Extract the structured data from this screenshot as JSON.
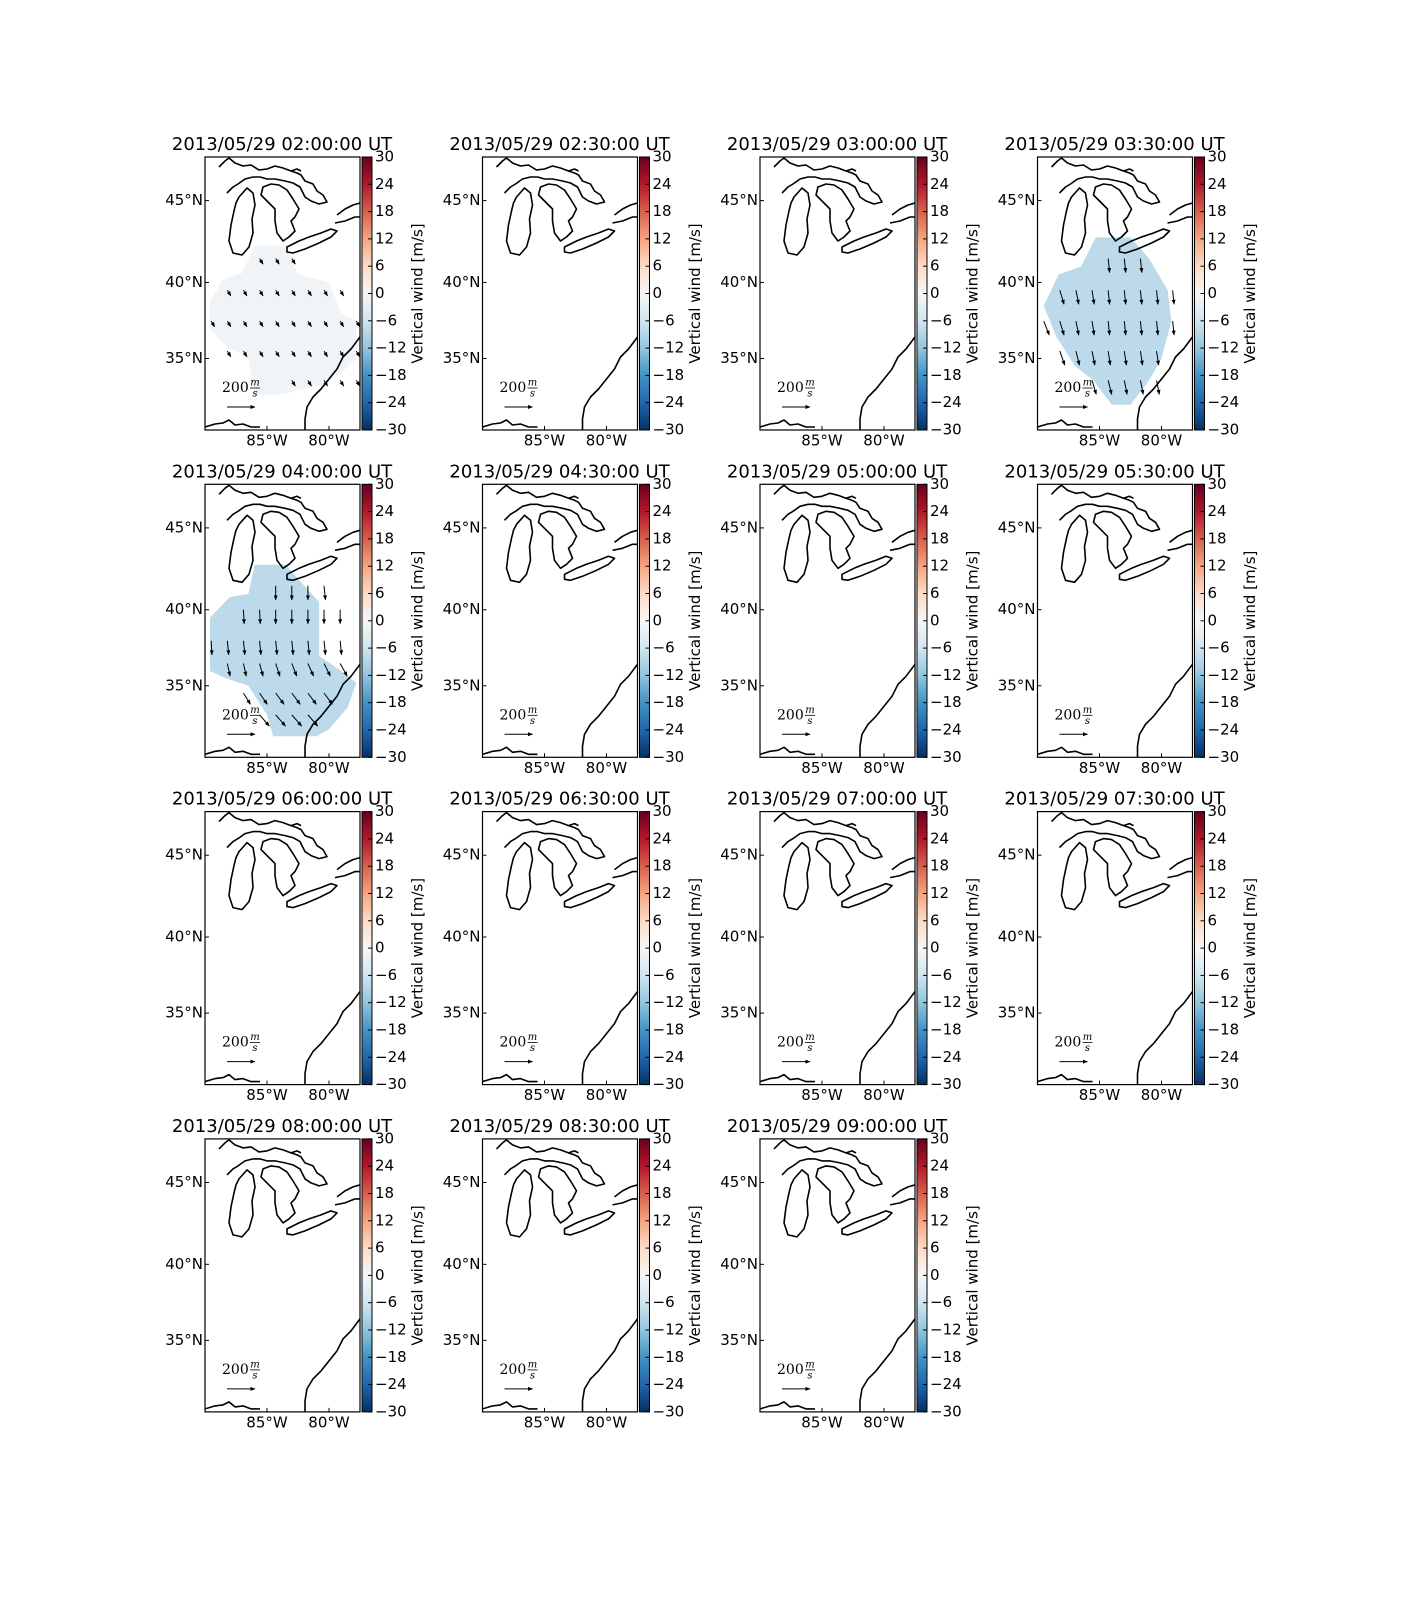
{
  "map": {
    "xlim": [
      -90,
      -77.5
    ],
    "ylim": [
      30,
      47.5
    ],
    "xticks": [
      {
        "value": -85,
        "label": "85°W"
      },
      {
        "value": -80,
        "label": "80°W"
      }
    ],
    "yticks": [
      {
        "value": 35,
        "label": "35°N"
      },
      {
        "value": 40,
        "label": "40°N"
      },
      {
        "value": 45,
        "label": "45°N"
      }
    ]
  },
  "colorbar": {
    "label": "Vertical wind [m/s]",
    "lim": [
      -30,
      30
    ],
    "colormap": [
      "#053061",
      "#2166ac",
      "#4393c3",
      "#92c5de",
      "#d1e5f0",
      "#f7f7f7",
      "#fddbc7",
      "#f4a582",
      "#d6604d",
      "#b2182b",
      "#67001f"
    ],
    "ticks": [
      30,
      24,
      18,
      12,
      6,
      0,
      {
        "value": -6,
        "label": "−6"
      },
      {
        "value": -12,
        "label": "−12"
      },
      {
        "value": -18,
        "label": "−18"
      },
      {
        "value": -24,
        "label": "−24"
      },
      {
        "value": -30,
        "label": "−30"
      }
    ]
  },
  "reference_arrow": {
    "value": 200,
    "numerator": "m",
    "denominator": "s"
  },
  "panels": [
    {
      "title": "2013/05/29 02:00:00 UT",
      "field": {
        "value": -1,
        "region": [
          [
            -89.6,
            38.8
          ],
          [
            -88.5,
            40.2
          ],
          [
            -87,
            40.6
          ],
          [
            -86,
            42.3
          ],
          [
            -83.5,
            42.3
          ],
          [
            -82.5,
            40.5
          ],
          [
            -80,
            40
          ],
          [
            -79,
            38
          ],
          [
            -77.8,
            37.5
          ],
          [
            -77.8,
            35
          ],
          [
            -79,
            34
          ],
          [
            -80.5,
            33.2
          ],
          [
            -84,
            32.5
          ],
          [
            -86,
            32.5
          ],
          [
            -86.5,
            35
          ],
          [
            -88.5,
            36
          ],
          [
            -89.6,
            37
          ]
        ],
        "lons": [
          -89.5,
          -88.2,
          -86.9,
          -85.6,
          -84.3,
          -83,
          -81.7,
          -80.4,
          -79.1,
          -77.8
        ],
        "lats": [
          41.5,
          39.5,
          37.5,
          35.5,
          33.5
        ],
        "u": [
          [
            null,
            null,
            null,
            25,
            25,
            25,
            null,
            null,
            null,
            null
          ],
          [
            null,
            25,
            25,
            25,
            25,
            25,
            25,
            25,
            25,
            null
          ],
          [
            25,
            25,
            25,
            25,
            25,
            25,
            25,
            25,
            25,
            25
          ],
          [
            null,
            25,
            25,
            25,
            25,
            25,
            25,
            25,
            25,
            25
          ],
          [
            null,
            null,
            null,
            null,
            null,
            25,
            25,
            25,
            25,
            25
          ]
        ],
        "v": [
          [
            null,
            null,
            null,
            -40,
            -40,
            -40,
            null,
            null,
            null,
            null
          ],
          [
            null,
            -40,
            -40,
            -40,
            -40,
            -40,
            -40,
            -40,
            -40,
            null
          ],
          [
            -40,
            -40,
            -40,
            -40,
            -40,
            -40,
            -40,
            -40,
            -40,
            -40
          ],
          [
            null,
            -40,
            -40,
            -40,
            -40,
            -40,
            -40,
            -40,
            -40,
            -40
          ],
          [
            null,
            null,
            null,
            null,
            null,
            -40,
            -40,
            -40,
            -40,
            -40
          ]
        ]
      }
    },
    {
      "title": "2013/05/29 02:30:00 UT"
    },
    {
      "title": "2013/05/29 03:00:00 UT"
    },
    {
      "title": "2013/05/29 03:30:00 UT",
      "field": {
        "value": -8,
        "region": [
          [
            -89.5,
            38.5
          ],
          [
            -88.3,
            40.5
          ],
          [
            -86.5,
            41
          ],
          [
            -85.3,
            42.8
          ],
          [
            -82.5,
            42.8
          ],
          [
            -81,
            41.5
          ],
          [
            -79.5,
            39.5
          ],
          [
            -79.2,
            37.5
          ],
          [
            -80,
            35
          ],
          [
            -81,
            33.5
          ],
          [
            -82.5,
            31.8
          ],
          [
            -84,
            31.8
          ],
          [
            -85.5,
            33.5
          ],
          [
            -87,
            34.5
          ],
          [
            -88.5,
            36.5
          ]
        ],
        "lons": [
          -89.5,
          -88.2,
          -86.9,
          -85.6,
          -84.3,
          -83,
          -81.7,
          -80.4,
          -79.1,
          -77.8
        ],
        "lats": [
          41.5,
          39.5,
          37.5,
          35.5,
          33.5
        ],
        "u": [
          [
            null,
            null,
            null,
            null,
            10,
            10,
            10,
            null,
            null,
            null
          ],
          [
            null,
            30,
            20,
            15,
            10,
            10,
            10,
            10,
            10,
            null
          ],
          [
            40,
            30,
            20,
            15,
            10,
            10,
            10,
            10,
            10,
            null
          ],
          [
            null,
            35,
            25,
            20,
            15,
            15,
            15,
            15,
            null,
            null
          ],
          [
            null,
            null,
            null,
            30,
            25,
            20,
            20,
            20,
            null,
            null
          ]
        ],
        "v": [
          [
            null,
            null,
            null,
            null,
            -100,
            -100,
            -100,
            null,
            null,
            null
          ],
          [
            null,
            -100,
            -100,
            -100,
            -100,
            -100,
            -100,
            -100,
            -100,
            null
          ],
          [
            -100,
            -100,
            -100,
            -100,
            -100,
            -100,
            -100,
            -100,
            -100,
            null
          ],
          [
            null,
            -100,
            -100,
            -100,
            -100,
            -100,
            -100,
            -100,
            null,
            null
          ],
          [
            null,
            null,
            null,
            -100,
            -100,
            -100,
            -100,
            -100,
            null,
            null
          ]
        ]
      }
    },
    {
      "title": "2013/05/29 04:00:00 UT",
      "field": {
        "value": -8,
        "region": [
          [
            -89.6,
            37
          ],
          [
            -89.6,
            39.5
          ],
          [
            -88,
            40.8
          ],
          [
            -86.5,
            41
          ],
          [
            -86,
            42.8
          ],
          [
            -83.5,
            42.8
          ],
          [
            -82,
            41.5
          ],
          [
            -80.8,
            40.5
          ],
          [
            -80.8,
            37
          ],
          [
            -79,
            36
          ],
          [
            -77.8,
            35.2
          ],
          [
            -78.5,
            33.5
          ],
          [
            -80,
            32
          ],
          [
            -81,
            31.5
          ],
          [
            -84.5,
            31.5
          ],
          [
            -85,
            33
          ],
          [
            -86.5,
            35
          ],
          [
            -88.3,
            35.5
          ],
          [
            -89.6,
            36
          ]
        ],
        "lons": [
          -89.5,
          -88.2,
          -86.9,
          -85.6,
          -84.3,
          -83,
          -81.7,
          -80.4,
          -79.1,
          -77.8
        ],
        "lats": [
          41.5,
          40,
          38,
          36.5,
          34.5,
          33
        ],
        "u": [
          [
            null,
            null,
            null,
            null,
            0,
            0,
            0,
            10,
            null,
            null
          ],
          [
            null,
            null,
            5,
            5,
            0,
            0,
            0,
            0,
            0,
            null
          ],
          [
            5,
            10,
            10,
            10,
            10,
            10,
            10,
            10,
            10,
            null
          ],
          [
            null,
            20,
            20,
            25,
            30,
            35,
            40,
            45,
            50,
            null
          ],
          [
            null,
            null,
            50,
            55,
            60,
            60,
            60,
            60,
            null,
            null
          ],
          [
            null,
            null,
            null,
            70,
            70,
            70,
            70,
            null,
            null,
            null
          ]
        ],
        "v": [
          [
            null,
            null,
            null,
            null,
            -100,
            -100,
            -100,
            -100,
            null,
            null
          ],
          [
            null,
            null,
            -100,
            -100,
            -100,
            -100,
            -100,
            -100,
            -100,
            null
          ],
          [
            -100,
            -100,
            -100,
            -100,
            -100,
            -100,
            -100,
            -100,
            -100,
            null
          ],
          [
            null,
            -90,
            -90,
            -90,
            -90,
            -90,
            -90,
            -90,
            -90,
            null
          ],
          [
            null,
            null,
            -80,
            -80,
            -80,
            -80,
            -80,
            -80,
            null,
            null
          ],
          [
            null,
            null,
            null,
            -80,
            -80,
            -80,
            -80,
            null,
            null,
            null
          ]
        ]
      }
    },
    {
      "title": "2013/05/29 04:30:00 UT"
    },
    {
      "title": "2013/05/29 05:00:00 UT"
    },
    {
      "title": "2013/05/29 05:30:00 UT"
    },
    {
      "title": "2013/05/29 06:00:00 UT"
    },
    {
      "title": "2013/05/29 06:30:00 UT"
    },
    {
      "title": "2013/05/29 07:00:00 UT"
    },
    {
      "title": "2013/05/29 07:30:00 UT"
    },
    {
      "title": "2013/05/29 08:00:00 UT"
    },
    {
      "title": "2013/05/29 08:30:00 UT"
    },
    {
      "title": "2013/05/29 09:00:00 UT"
    }
  ]
}
